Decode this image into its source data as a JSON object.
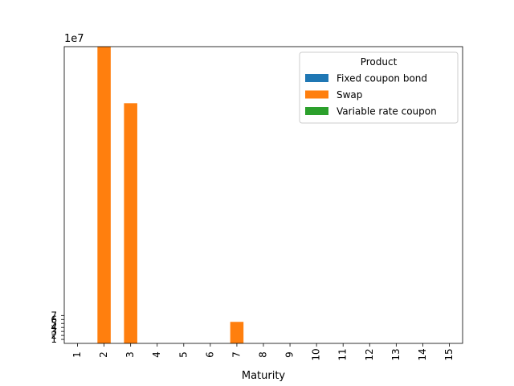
{
  "chart_data": {
    "type": "bar",
    "stacked": true,
    "title": "",
    "xlabel": "Maturity",
    "ylabel": "",
    "y_offset_label": "1e7",
    "categories": [
      "1",
      "2",
      "3",
      "4",
      "5",
      "6",
      "7",
      "8",
      "9",
      "10",
      "11",
      "12",
      "13",
      "14",
      "15"
    ],
    "yticks": [
      1,
      2,
      3,
      4,
      5,
      6,
      7
    ],
    "ylim": [
      0,
      74.5
    ],
    "y_unit_scale": 10000000,
    "legend": {
      "title": "Product",
      "position": "top-right",
      "entries": [
        "Fixed coupon bond",
        "Swap",
        "Variable rate coupon"
      ]
    },
    "series": [
      {
        "name": "Fixed coupon bond",
        "color": "#1f77b4",
        "values": [
          0,
          0,
          0,
          0,
          0,
          0,
          0,
          0,
          0,
          0,
          0,
          0,
          0,
          0,
          0
        ]
      },
      {
        "name": "Swap",
        "color": "#ff7f0e",
        "values": [
          0,
          74.5,
          60.3,
          0,
          0,
          0,
          5.4,
          0,
          0,
          0,
          0,
          0,
          0,
          0,
          0
        ]
      },
      {
        "name": "Variable rate coupon",
        "color": "#2ca02c",
        "values": [
          0,
          0,
          0,
          0,
          0,
          0,
          0,
          0,
          0,
          0,
          0,
          0,
          0,
          0,
          0
        ]
      }
    ],
    "grid": false
  }
}
